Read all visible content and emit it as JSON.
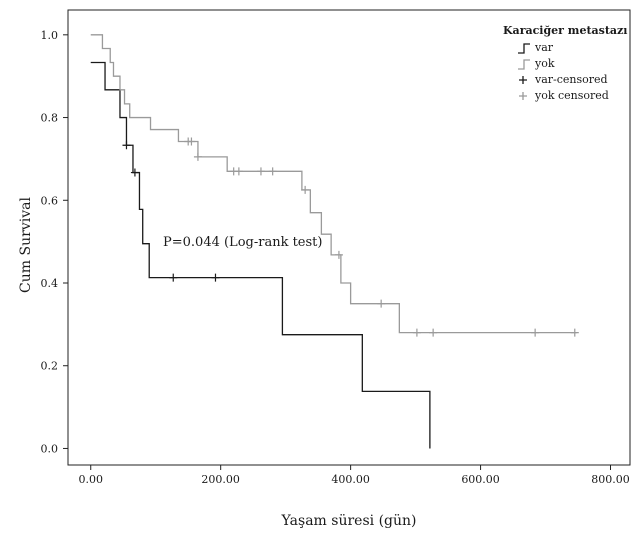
{
  "chart_data": {
    "type": "line",
    "subtype": "kaplan-meier step",
    "title": "",
    "xlabel": "Yaşam süresi (gün)",
    "ylabel": "Cum Survival",
    "xlim": [
      -35,
      830
    ],
    "ylim": [
      -0.04,
      1.06
    ],
    "x_ticks": [
      0,
      200,
      400,
      600,
      800
    ],
    "x_tick_labels": [
      "0.00",
      "200.00",
      "400.00",
      "600.00",
      "800.00"
    ],
    "y_ticks": [
      0,
      0.2,
      0.4,
      0.6,
      0.8,
      1.0
    ],
    "y_tick_labels": [
      "0.0",
      "0.2",
      "0.4",
      "0.6",
      "0.8",
      "1.0"
    ],
    "grid": false,
    "legend": {
      "title": "Karaciğer metastazı",
      "position": "top-right",
      "entries": [
        "var",
        "yok",
        "var-censored",
        "yok censored"
      ]
    },
    "annotation": "P=0.044 (Log-rank test)",
    "series": [
      {
        "name": "var",
        "color": "#1a1a1a",
        "steps": [
          [
            0,
            0.933
          ],
          [
            22,
            0.867
          ],
          [
            45,
            0.8
          ],
          [
            55,
            0.733
          ],
          [
            65,
            0.667
          ],
          [
            75,
            0.578
          ],
          [
            80,
            0.495
          ],
          [
            90,
            0.413
          ],
          [
            295,
            0.275
          ],
          [
            418,
            0.138
          ],
          [
            522,
            0.0
          ]
        ],
        "end_x": 522,
        "censored_x": [
          55,
          68,
          127,
          192
        ]
      },
      {
        "name": "yok",
        "color": "#9a9a9a",
        "steps": [
          [
            0,
            1.0
          ],
          [
            18,
            0.967
          ],
          [
            30,
            0.933
          ],
          [
            35,
            0.9
          ],
          [
            45,
            0.867
          ],
          [
            52,
            0.833
          ],
          [
            60,
            0.8
          ],
          [
            92,
            0.771
          ],
          [
            135,
            0.742
          ],
          [
            165,
            0.705
          ],
          [
            210,
            0.67
          ],
          [
            325,
            0.625
          ],
          [
            338,
            0.57
          ],
          [
            355,
            0.518
          ],
          [
            370,
            0.468
          ],
          [
            385,
            0.4
          ],
          [
            400,
            0.35
          ],
          [
            475,
            0.28
          ]
        ],
        "end_x": 748,
        "censored_x": [
          150,
          155,
          165,
          220,
          228,
          262,
          280,
          330,
          382,
          447,
          502,
          527,
          684,
          745
        ]
      }
    ]
  }
}
